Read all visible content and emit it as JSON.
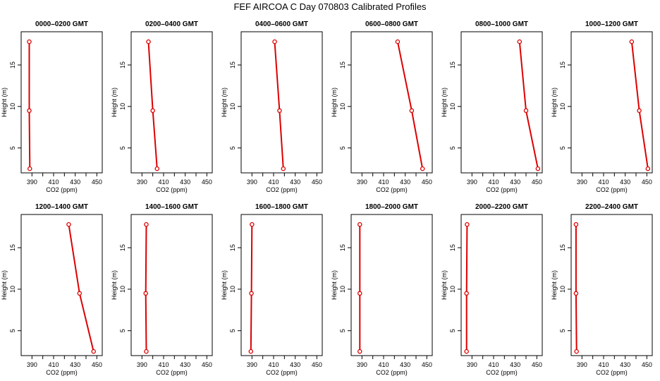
{
  "title": "FEF AIRCOA C  Day 070803  Calibrated Profiles",
  "chart_data": [
    {
      "type": "line",
      "title": "0000–0200 GMT",
      "xlabel": "CO2 (ppm)",
      "ylabel": "Height (m)",
      "xlim": [
        380,
        455
      ],
      "ylim": [
        2,
        19
      ],
      "xticks": [
        390,
        410,
        430,
        450
      ],
      "yticks": [
        5,
        10,
        15
      ],
      "series": [
        {
          "x": [
            388,
            387.5,
            387.5
          ],
          "y": [
            2.5,
            9.5,
            17.8
          ]
        }
      ]
    },
    {
      "type": "line",
      "title": "0200–0400 GMT",
      "xlabel": "CO2 (ppm)",
      "ylabel": "Height (m)",
      "xlim": [
        380,
        455
      ],
      "ylim": [
        2,
        19
      ],
      "xticks": [
        390,
        410,
        430,
        450
      ],
      "yticks": [
        5,
        10,
        15
      ],
      "series": [
        {
          "x": [
            404,
            400,
            396
          ],
          "y": [
            2.5,
            9.5,
            17.8
          ]
        }
      ]
    },
    {
      "type": "line",
      "title": "0400–0600 GMT",
      "xlabel": "CO2 (ppm)",
      "ylabel": "Height (m)",
      "xlim": [
        380,
        455
      ],
      "ylim": [
        2,
        19
      ],
      "xticks": [
        390,
        410,
        430,
        450
      ],
      "yticks": [
        5,
        10,
        15
      ],
      "series": [
        {
          "x": [
            419,
            415.5,
            411
          ],
          "y": [
            2.5,
            9.5,
            17.8
          ]
        }
      ]
    },
    {
      "type": "line",
      "title": "0600–0800 GMT",
      "xlabel": "CO2 (ppm)",
      "ylabel": "Height (m)",
      "xlim": [
        380,
        455
      ],
      "ylim": [
        2,
        19
      ],
      "xticks": [
        390,
        410,
        430,
        450
      ],
      "yticks": [
        5,
        10,
        15
      ],
      "series": [
        {
          "x": [
            446,
            436,
            423
          ],
          "y": [
            2.5,
            9.5,
            17.8
          ]
        }
      ]
    },
    {
      "type": "line",
      "title": "0800–1000 GMT",
      "xlabel": "CO2 (ppm)",
      "ylabel": "Height (m)",
      "xlim": [
        380,
        455
      ],
      "ylim": [
        2,
        19
      ],
      "xticks": [
        390,
        410,
        430,
        450
      ],
      "yticks": [
        5,
        10,
        15
      ],
      "series": [
        {
          "x": [
            451,
            440,
            434
          ],
          "y": [
            2.5,
            9.5,
            17.8
          ]
        }
      ]
    },
    {
      "type": "line",
      "title": "1000–1200 GMT",
      "xlabel": "CO2 (ppm)",
      "ylabel": "Height (m)",
      "xlim": [
        380,
        455
      ],
      "ylim": [
        2,
        19
      ],
      "xticks": [
        390,
        410,
        430,
        450
      ],
      "yticks": [
        5,
        10,
        15
      ],
      "series": [
        {
          "x": [
            451,
            443,
            436
          ],
          "y": [
            2.5,
            9.5,
            17.8
          ]
        }
      ]
    },
    {
      "type": "line",
      "title": "1200–1400 GMT",
      "xlabel": "CO2 (ppm)",
      "ylabel": "Height (m)",
      "xlim": [
        380,
        455
      ],
      "ylim": [
        2,
        19
      ],
      "xticks": [
        390,
        410,
        430,
        450
      ],
      "yticks": [
        5,
        10,
        15
      ],
      "series": [
        {
          "x": [
            447,
            434,
            424
          ],
          "y": [
            2.5,
            9.5,
            17.8
          ]
        }
      ]
    },
    {
      "type": "line",
      "title": "1400–1600 GMT",
      "xlabel": "CO2 (ppm)",
      "ylabel": "Height (m)",
      "xlim": [
        380,
        455
      ],
      "ylim": [
        2,
        19
      ],
      "xticks": [
        390,
        410,
        430,
        450
      ],
      "yticks": [
        5,
        10,
        15
      ],
      "series": [
        {
          "x": [
            394,
            393.5,
            394
          ],
          "y": [
            2.5,
            9.5,
            17.8
          ]
        }
      ]
    },
    {
      "type": "line",
      "title": "1600–1800 GMT",
      "xlabel": "CO2 (ppm)",
      "ylabel": "Height (m)",
      "xlim": [
        380,
        455
      ],
      "ylim": [
        2,
        19
      ],
      "xticks": [
        390,
        410,
        430,
        450
      ],
      "yticks": [
        5,
        10,
        15
      ],
      "series": [
        {
          "x": [
            389,
            389.5,
            390
          ],
          "y": [
            2.5,
            9.5,
            17.8
          ]
        }
      ]
    },
    {
      "type": "line",
      "title": "1800–2000 GMT",
      "xlabel": "CO2 (ppm)",
      "ylabel": "Height (m)",
      "xlim": [
        380,
        455
      ],
      "ylim": [
        2,
        19
      ],
      "xticks": [
        390,
        410,
        430,
        450
      ],
      "yticks": [
        5,
        10,
        15
      ],
      "series": [
        {
          "x": [
            388,
            388,
            388
          ],
          "y": [
            2.5,
            9.5,
            17.8
          ]
        }
      ]
    },
    {
      "type": "line",
      "title": "2000–2200 GMT",
      "xlabel": "CO2 (ppm)",
      "ylabel": "Height (m)",
      "xlim": [
        380,
        455
      ],
      "ylim": [
        2,
        19
      ],
      "xticks": [
        390,
        410,
        430,
        450
      ],
      "yticks": [
        5,
        10,
        15
      ],
      "series": [
        {
          "x": [
            385,
            385,
            385.5
          ],
          "y": [
            2.5,
            9.5,
            17.8
          ]
        }
      ]
    },
    {
      "type": "line",
      "title": "2200–2400 GMT",
      "xlabel": "CO2 (ppm)",
      "ylabel": "Height (m)",
      "xlim": [
        380,
        455
      ],
      "ylim": [
        2,
        19
      ],
      "xticks": [
        390,
        410,
        430,
        450
      ],
      "yticks": [
        5,
        10,
        15
      ],
      "series": [
        {
          "x": [
            385,
            384.5,
            384.5
          ],
          "y": [
            2.5,
            9.5,
            17.8
          ]
        }
      ]
    }
  ],
  "colors": {
    "series": "#dd0000",
    "axis": "#000000"
  }
}
